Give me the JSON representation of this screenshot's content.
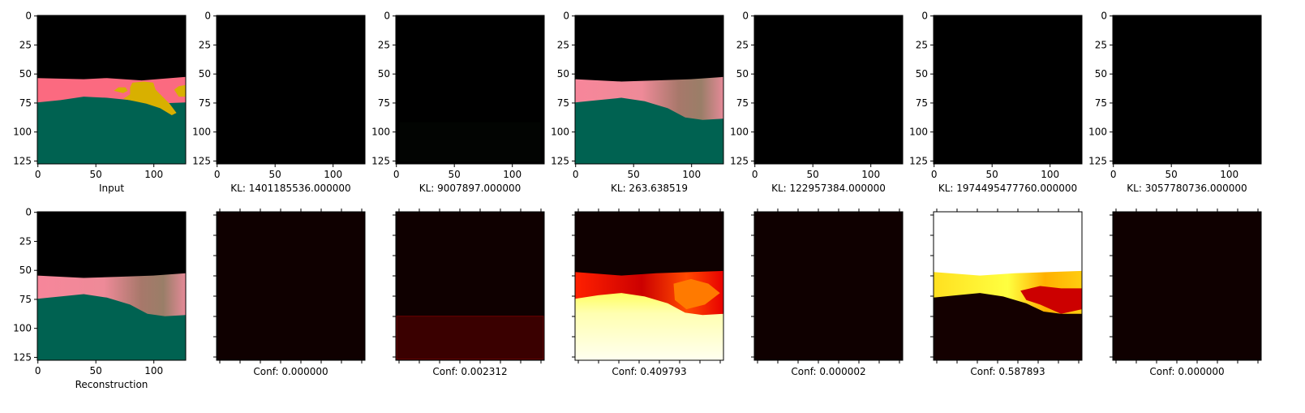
{
  "chart_data": [
    {
      "type": "image",
      "xlabel": "Input",
      "content": "input-scene",
      "xticks": [
        0,
        50,
        100
      ],
      "yticks": [
        0,
        25,
        50,
        75,
        100,
        125
      ],
      "xlim": [
        0,
        128
      ],
      "ylim": [
        128,
        0
      ]
    },
    {
      "type": "image",
      "xlabel": "KL: 1401185536.000000",
      "content": "black",
      "xticks": [
        0,
        50,
        100
      ],
      "yticks": [
        0,
        25,
        50,
        75,
        100,
        125
      ],
      "xlim": [
        0,
        128
      ],
      "ylim": [
        128,
        0
      ]
    },
    {
      "type": "image",
      "xlabel": "KL: 9007897.000000",
      "content": "near-black",
      "xticks": [
        0,
        50,
        100
      ],
      "yticks": [
        0,
        25,
        50,
        75,
        100,
        125
      ],
      "xlim": [
        0,
        128
      ],
      "ylim": [
        128,
        0
      ]
    },
    {
      "type": "image",
      "xlabel": "KL: 263.638519",
      "content": "blurred-scene",
      "xticks": [
        0,
        50,
        100
      ],
      "yticks": [
        0,
        25,
        50,
        75,
        100,
        125
      ],
      "xlim": [
        0,
        128
      ],
      "ylim": [
        128,
        0
      ]
    },
    {
      "type": "image",
      "xlabel": "KL: 122957384.000000",
      "content": "black",
      "xticks": [
        0,
        50,
        100
      ],
      "yticks": [
        0,
        25,
        50,
        75,
        100,
        125
      ],
      "xlim": [
        0,
        128
      ],
      "ylim": [
        128,
        0
      ]
    },
    {
      "type": "image",
      "xlabel": "KL: 1974495477760.000000",
      "content": "black",
      "xticks": [
        0,
        50,
        100
      ],
      "yticks": [
        0,
        25,
        50,
        75,
        100,
        125
      ],
      "xlim": [
        0,
        128
      ],
      "ylim": [
        128,
        0
      ]
    },
    {
      "type": "image",
      "xlabel": "KL: 3057780736.000000",
      "content": "black",
      "xticks": [
        0,
        50,
        100
      ],
      "yticks": [
        0,
        25,
        50,
        75,
        100,
        125
      ],
      "xlim": [
        0,
        128
      ],
      "ylim": [
        128,
        0
      ]
    },
    {
      "type": "image",
      "xlabel": "Reconstruction",
      "content": "blurred-scene",
      "xticks": [
        0,
        50,
        100
      ],
      "yticks": [
        0,
        25,
        50,
        75,
        100,
        125
      ],
      "xlim": [
        0,
        128
      ],
      "ylim": [
        128,
        0
      ]
    },
    {
      "type": "heatmap",
      "colormap": "hot",
      "xlabel": "Conf: 0.000000",
      "content": "uniform-dark",
      "tick_labels": false
    },
    {
      "type": "heatmap",
      "colormap": "hot",
      "xlabel": "Conf: 0.002312",
      "content": "bottom-band",
      "tick_labels": false
    },
    {
      "type": "heatmap",
      "colormap": "hot",
      "xlabel": "Conf: 0.409793",
      "content": "ground-bright",
      "tick_labels": false
    },
    {
      "type": "heatmap",
      "colormap": "hot",
      "xlabel": "Conf: 0.000002",
      "content": "uniform-dark",
      "tick_labels": false
    },
    {
      "type": "heatmap",
      "colormap": "hot",
      "xlabel": "Conf: 0.587893",
      "content": "sky-bright",
      "tick_labels": false
    },
    {
      "type": "heatmap",
      "colormap": "hot",
      "xlabel": "Conf: 0.000000",
      "content": "uniform-dark",
      "tick_labels": false
    }
  ],
  "colors": {
    "black": "#000000",
    "sky_pink": "#fb6a80",
    "ground_green": "#006251",
    "object_yellow": "#d8b000",
    "hot_dark": "#0f0000",
    "hot_red": "#cc0000",
    "hot_orange": "#ff7a00",
    "hot_yellow": "#ffff30",
    "hot_white": "#ffffff"
  }
}
